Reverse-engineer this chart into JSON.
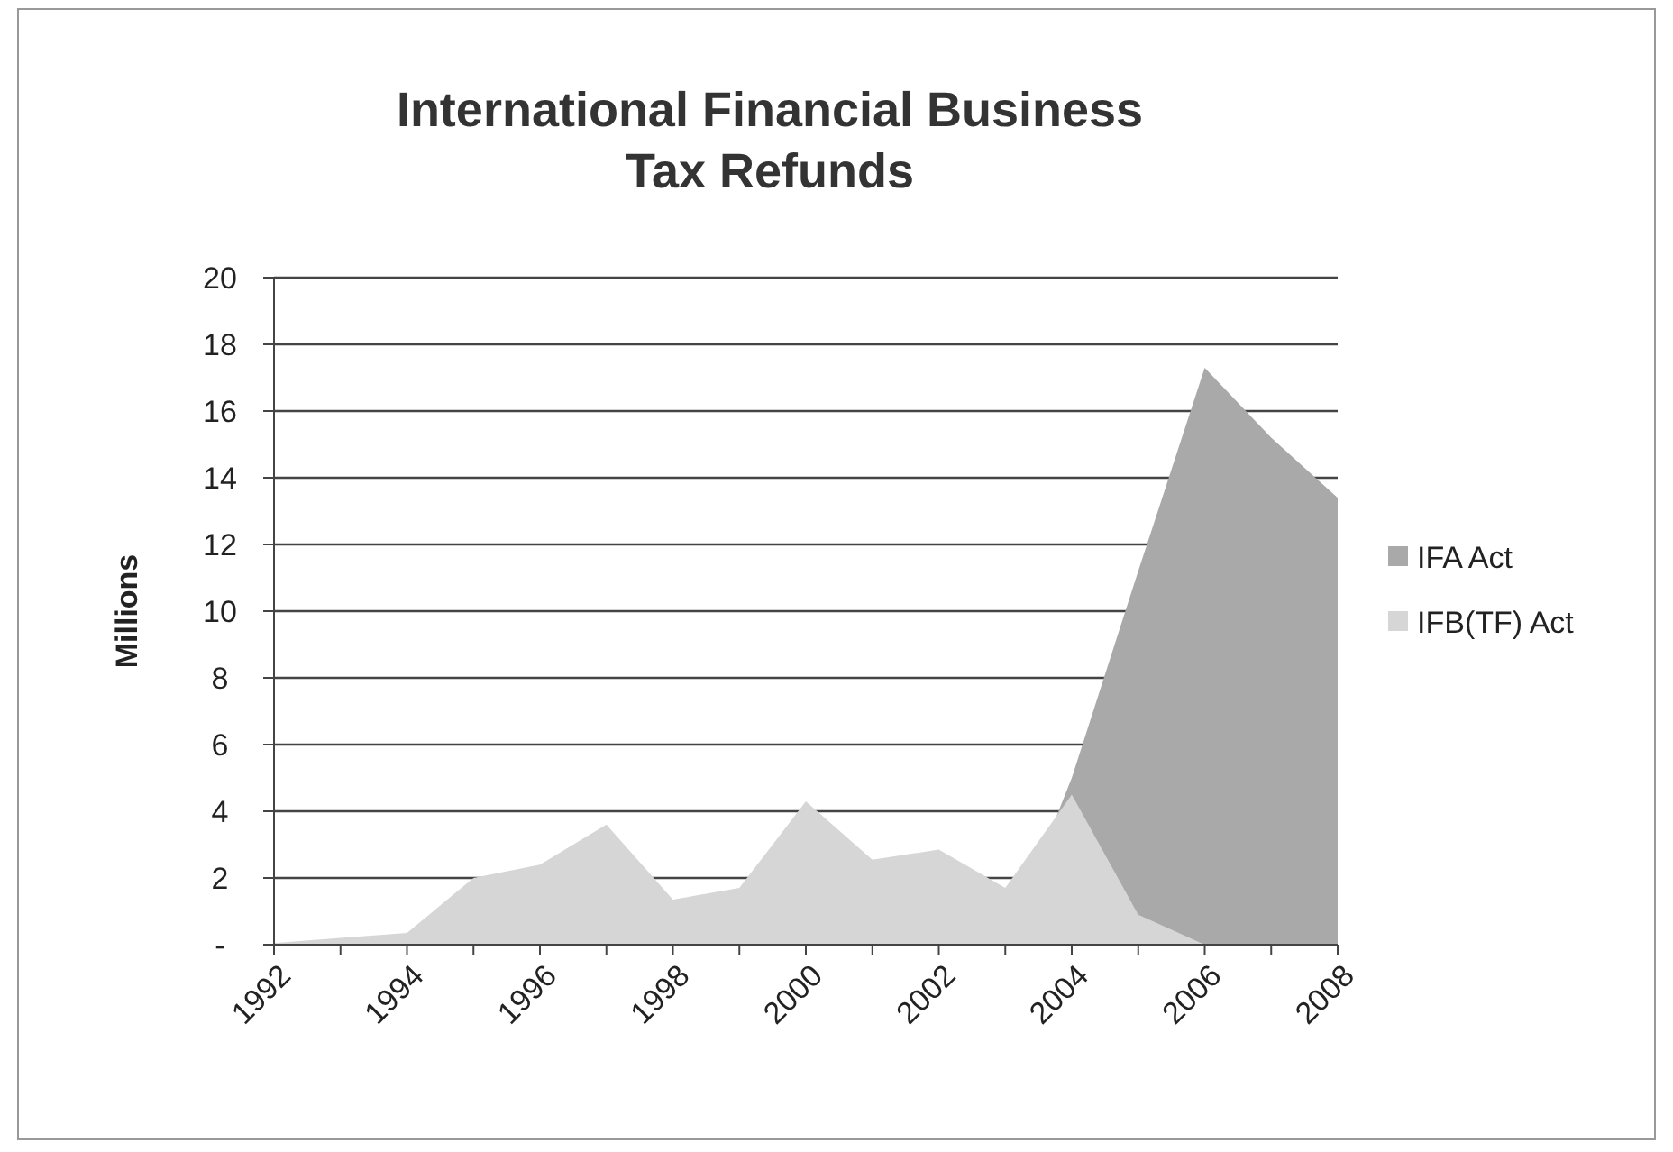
{
  "chart_data": {
    "type": "area",
    "title": "International Financial Business Tax Refunds",
    "ylabel": "Millions",
    "x": [
      1992,
      1993,
      1994,
      1995,
      1996,
      1997,
      1998,
      1999,
      2000,
      2001,
      2002,
      2003,
      2004,
      2005,
      2006,
      2007,
      2008
    ],
    "series": [
      {
        "name": "IFA Act",
        "color": "#a9a9a9",
        "values": [
          0,
          0,
          0,
          0,
          0,
          0,
          0,
          0,
          0,
          0,
          0,
          0,
          5.0,
          11.2,
          17.3,
          15.2,
          13.4
        ]
      },
      {
        "name": "IFB(TF) Act",
        "color": "#d6d6d6",
        "values": [
          0.05,
          0.2,
          0.35,
          2.0,
          2.4,
          3.6,
          1.35,
          1.7,
          4.3,
          2.55,
          2.85,
          1.7,
          4.5,
          0.9,
          0,
          0,
          0
        ]
      }
    ],
    "xlim": [
      1992,
      2008
    ],
    "xticks": [
      1992,
      1994,
      1996,
      1998,
      2000,
      2002,
      2004,
      2006,
      2008
    ],
    "ylim": [
      0,
      20
    ],
    "yticks": [
      {
        "value": 0,
        "label": "-"
      },
      2,
      4,
      6,
      8,
      10,
      12,
      14,
      16,
      18,
      20
    ],
    "grid": "y",
    "legend": "right"
  }
}
